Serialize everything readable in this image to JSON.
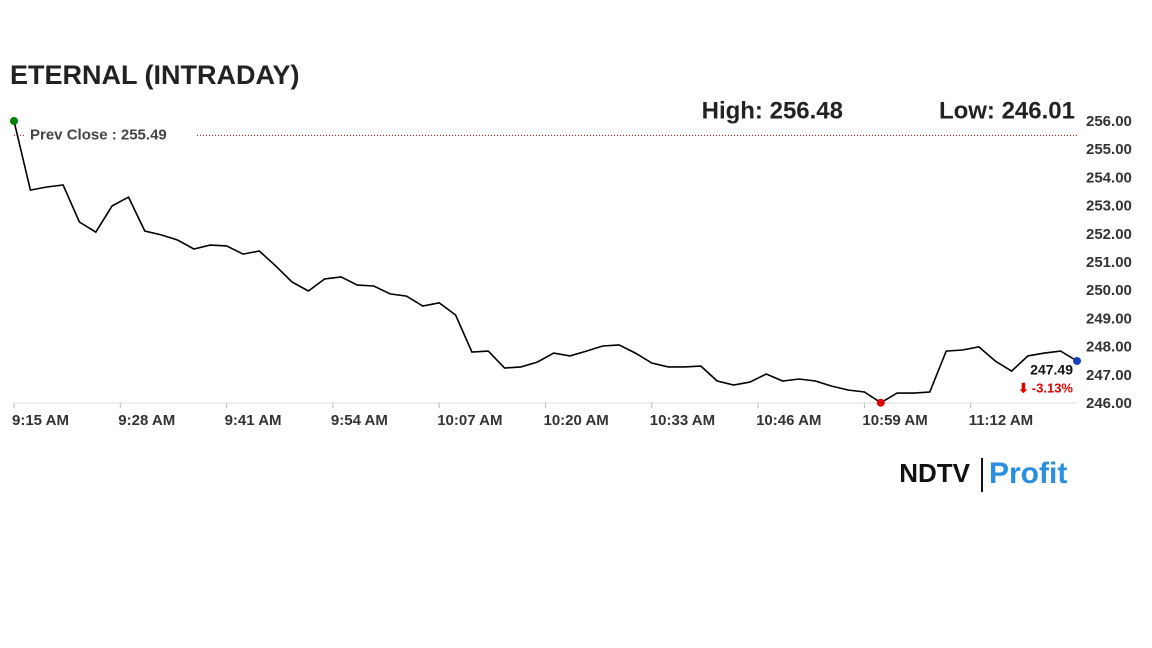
{
  "chart_data": {
    "type": "line",
    "title": "ETERNAL (INTRADAY)",
    "high_label": "High: 256.48",
    "low_label": "Low: 246.01",
    "reference_line": {
      "value": 255.49,
      "label": "Prev Close : 255.49",
      "color": "#cc0000"
    },
    "last_label": "247.49",
    "change_label": "-3.13%",
    "source": {
      "brand": "NDTV",
      "product": "Profit"
    },
    "x": [
      "9:15 AM",
      "9:17 AM",
      "9:19 AM",
      "9:21 AM",
      "9:23 AM",
      "9:25 AM",
      "9:27 AM",
      "9:29 AM",
      "9:31 AM",
      "9:33 AM",
      "9:35 AM",
      "9:37 AM",
      "9:39 AM",
      "9:41 AM",
      "9:43 AM",
      "9:45 AM",
      "9:47 AM",
      "9:49 AM",
      "9:51 AM",
      "9:53 AM",
      "9:55 AM",
      "9:57 AM",
      "9:59 AM",
      "10:01 AM",
      "10:03 AM",
      "10:05 AM",
      "10:07 AM",
      "10:09 AM",
      "10:11 AM",
      "10:13 AM",
      "10:15 AM",
      "10:17 AM",
      "10:19 AM",
      "10:21 AM",
      "10:23 AM",
      "10:25 AM",
      "10:27 AM",
      "10:29 AM",
      "10:31 AM",
      "10:33 AM",
      "10:35 AM",
      "10:37 AM",
      "10:39 AM",
      "10:41 AM",
      "10:43 AM",
      "10:45 AM",
      "10:47 AM",
      "10:49 AM",
      "10:51 AM",
      "10:53 AM",
      "10:55 AM",
      "10:57 AM",
      "10:59 AM",
      "11:01 AM",
      "11:03 AM",
      "11:05 AM",
      "11:07 AM",
      "11:09 AM",
      "11:11 AM",
      "11:13 AM",
      "11:15 AM",
      "11:17 AM",
      "11:19 AM",
      "11:21 AM",
      "11:23 AM",
      "11:25 AM"
    ],
    "series": [
      {
        "name": "ETERNAL",
        "color": "#000000",
        "values": [
          256.0,
          253.55,
          253.66,
          253.73,
          252.42,
          252.06,
          252.99,
          253.3,
          252.1,
          251.96,
          251.78,
          251.46,
          251.6,
          251.57,
          251.28,
          251.39,
          250.86,
          250.29,
          249.97,
          250.4,
          250.47,
          250.18,
          250.15,
          249.87,
          249.79,
          249.44,
          249.55,
          249.12,
          247.81,
          247.84,
          247.24,
          247.28,
          247.45,
          247.77,
          247.67,
          247.84,
          248.02,
          248.06,
          247.77,
          247.42,
          247.28,
          247.28,
          247.31,
          246.78,
          246.64,
          246.74,
          247.03,
          246.78,
          246.85,
          246.78,
          246.6,
          246.46,
          246.39,
          246.01,
          246.35,
          246.35,
          246.39,
          247.84,
          247.88,
          247.99,
          247.49,
          247.13,
          247.67,
          247.77,
          247.84,
          247.49
        ]
      }
    ],
    "markers": {
      "start_color": "#008000",
      "low_color": "#e00000",
      "end_color": "#1a3fbf"
    },
    "xlim": [
      "9:15 AM",
      "11:25 AM"
    ],
    "xticks": [
      "9:15 AM",
      "9:28 AM",
      "9:41 AM",
      "9:54 AM",
      "10:07 AM",
      "10:20 AM",
      "10:33 AM",
      "10:46 AM",
      "10:59 AM",
      "11:12 AM"
    ],
    "ylim": [
      246,
      256
    ],
    "yticks": [
      {
        "value": 246,
        "label": "246.00"
      },
      {
        "value": 247,
        "label": "247.00"
      },
      {
        "value": 248,
        "label": "248.00"
      },
      {
        "value": 249,
        "label": "249.00"
      },
      {
        "value": 250,
        "label": "250.00"
      },
      {
        "value": 251,
        "label": "251.00"
      },
      {
        "value": 252,
        "label": "252.00"
      },
      {
        "value": 253,
        "label": "253.00"
      },
      {
        "value": 254,
        "label": "254.00"
      },
      {
        "value": 255,
        "label": "255.00"
      },
      {
        "value": 256,
        "label": "256.00"
      }
    ],
    "grid": false
  }
}
